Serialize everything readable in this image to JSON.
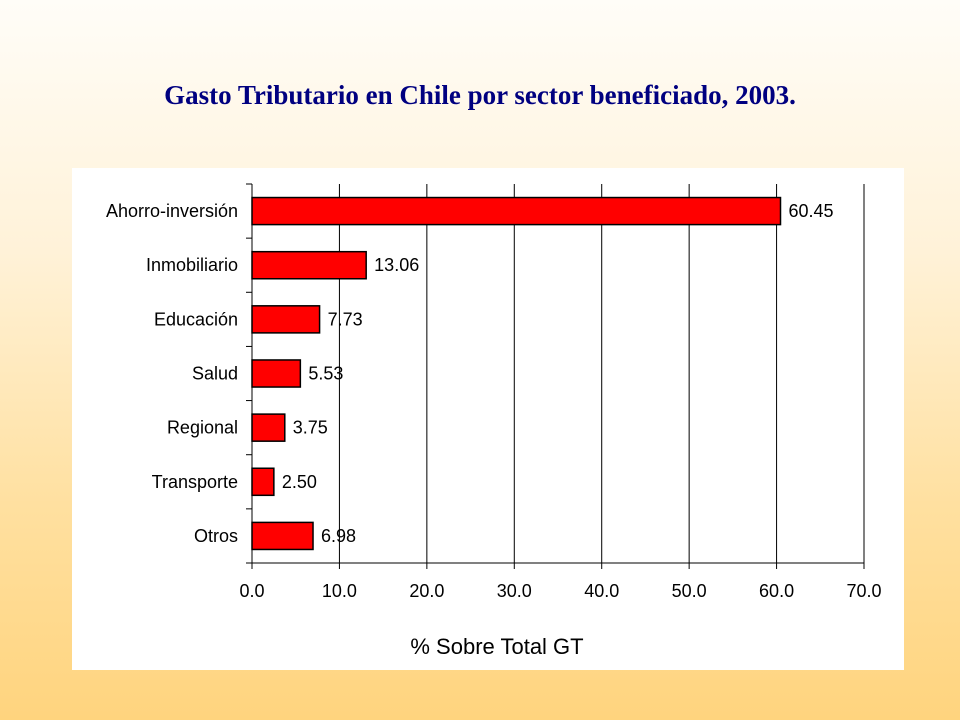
{
  "slide": {
    "title": "Gasto Tributario en Chile por sector beneficiado, 2003."
  },
  "colors": {
    "bar_fill": "#ff0000",
    "title_color": "#000080",
    "background_top": "#fffdf8",
    "background_bottom": "#ffd47e"
  },
  "chart_data": {
    "type": "bar",
    "orientation": "horizontal",
    "categories": [
      "Ahorro-inversión",
      "Inmobiliario",
      "Educación",
      "Salud",
      "Regional",
      "Transporte",
      "Otros"
    ],
    "values": [
      60.45,
      13.06,
      7.73,
      5.53,
      3.75,
      2.5,
      6.98
    ],
    "data_labels": [
      "60.45",
      "13.06",
      "7.73",
      "5.53",
      "3.75",
      "2.50",
      "6.98"
    ],
    "xlabel": "% Sobre Total GT",
    "ylabel": "",
    "xlim": [
      0,
      70
    ],
    "x_ticks": [
      0,
      10,
      20,
      30,
      40,
      50,
      60,
      70
    ],
    "x_tick_labels": [
      "0.0",
      "10.0",
      "20.0",
      "30.0",
      "40.0",
      "50.0",
      "60.0",
      "70.0"
    ],
    "grid": "vertical major gridlines",
    "legend": "none"
  }
}
